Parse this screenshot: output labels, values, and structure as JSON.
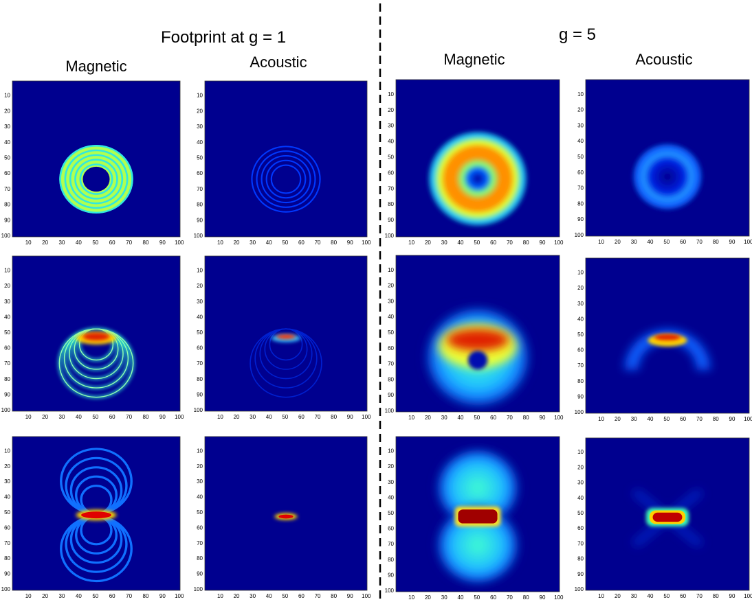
{
  "figure": {
    "groups": [
      {
        "title": "Footprint at g = 1",
        "columns": [
          "Magnetic",
          "Acoustic"
        ]
      },
      {
        "title": "g = 5",
        "columns": [
          "Magnetic",
          "Acoustic"
        ]
      }
    ],
    "axis_lim": [
      0.5,
      100.5
    ],
    "axis_ticks": [
      10,
      20,
      30,
      40,
      50,
      60,
      70,
      80,
      90,
      100
    ]
  }
}
